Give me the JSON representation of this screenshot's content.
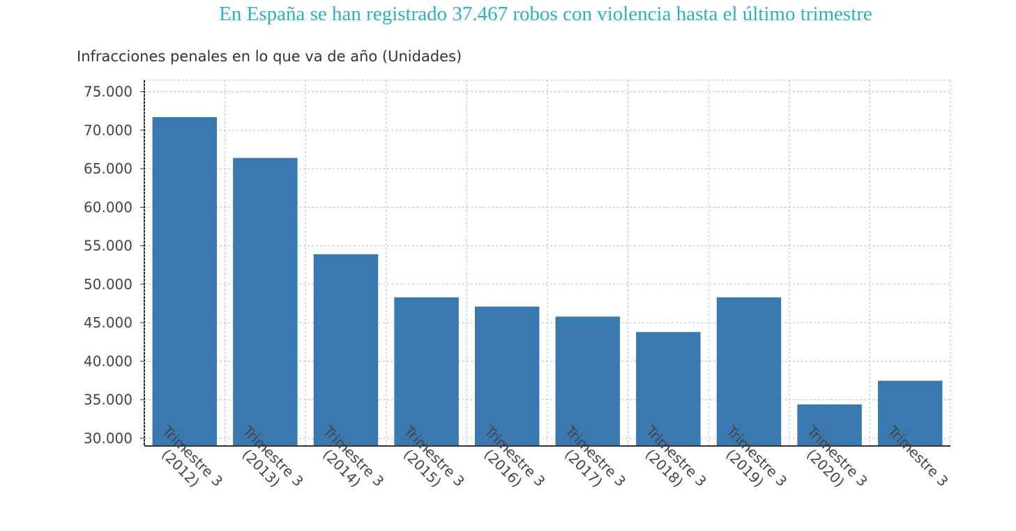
{
  "chart_data": {
    "type": "bar",
    "title": "En España se han registrado 37.467 robos con violencia hasta el último trimestre",
    "subtitle": "Infracciones penales en lo que va de año (Unidades)",
    "xlabel": "",
    "ylabel": "",
    "categories": [
      "Trimestre 3 (2012)",
      "Trimestre 3 (2013)",
      "Trimestre 3 (2014)",
      "Trimestre 3 (2015)",
      "Trimestre 3 (2016)",
      "Trimestre 3 (2017)",
      "Trimestre 3 (2018)",
      "Trimestre 3 (2019)",
      "Trimestre 3 (2020)",
      "Trimestre 3"
    ],
    "values": [
      71700,
      66400,
      53900,
      48300,
      47100,
      45800,
      43800,
      48300,
      34400,
      37467
    ],
    "ylim": [
      29000,
      76500
    ],
    "yticks": [
      30000,
      35000,
      40000,
      45000,
      50000,
      55000,
      60000,
      65000,
      70000,
      75000
    ],
    "ytick_labels": [
      "30.000",
      "35.000",
      "40.000",
      "45.000",
      "50.000",
      "55.000",
      "60.000",
      "65.000",
      "70.000",
      "75.000"
    ],
    "grid": true,
    "legend": "none",
    "colors": {
      "bar": "#3a79af",
      "title": "#29b1c6",
      "grid": "#bbbbbb",
      "axis": "#333333"
    }
  }
}
